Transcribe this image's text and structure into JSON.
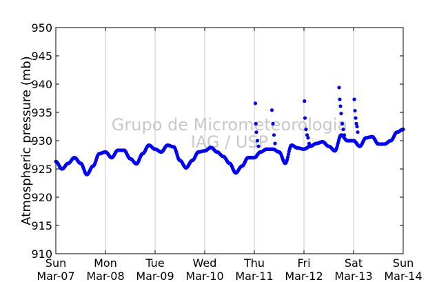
{
  "chart_data": {
    "type": "scatter",
    "title": "",
    "xlabel": "",
    "ylabel": "Atmospheric pressure (mb)",
    "ylim": [
      910,
      950
    ],
    "yticks": [
      910,
      915,
      920,
      925,
      930,
      935,
      940,
      945,
      950
    ],
    "xlim": [
      "2010-03-07",
      "2010-03-14"
    ],
    "xticks": [
      {
        "day": "Sun",
        "date": "Mar-07"
      },
      {
        "day": "Mon",
        "date": "Mar-08"
      },
      {
        "day": "Tue",
        "date": "Mar-09"
      },
      {
        "day": "Wed",
        "date": "Mar-10"
      },
      {
        "day": "Thu",
        "date": "Mar-11"
      },
      {
        "day": "Fri",
        "date": "Mar-12"
      },
      {
        "day": "Sat",
        "date": "Mar-13"
      },
      {
        "day": "Sun",
        "date": "Mar-14"
      }
    ],
    "grid": "vertical",
    "marker_color": "#0000ff",
    "watermark": [
      "Grupo de Micrometeorologia",
      "IAG / USP"
    ],
    "series": [
      {
        "x": [
          "2010-03-07 00:00",
          "2010-03-07 03:00",
          "2010-03-07 06:00",
          "2010-03-07 09:00",
          "2010-03-07 12:00",
          "2010-03-07 15:00",
          "2010-03-07 18:00",
          "2010-03-07 21:00",
          "2010-03-08 00:00",
          "2010-03-08 03:00",
          "2010-03-08 06:00",
          "2010-03-08 09:00",
          "2010-03-08 12:00",
          "2010-03-08 15:00",
          "2010-03-08 18:00",
          "2010-03-08 21:00",
          "2010-03-09 00:00",
          "2010-03-09 03:00",
          "2010-03-09 06:00",
          "2010-03-09 09:00",
          "2010-03-09 12:00",
          "2010-03-09 15:00",
          "2010-03-09 18:00",
          "2010-03-09 21:00",
          "2010-03-10 00:00",
          "2010-03-10 03:00",
          "2010-03-10 06:00",
          "2010-03-10 09:00",
          "2010-03-10 12:00",
          "2010-03-10 15:00",
          "2010-03-10 18:00",
          "2010-03-10 21:00",
          "2010-03-11 00:00",
          "2010-03-11 03:00",
          "2010-03-11 06:00",
          "2010-03-11 09:00",
          "2010-03-11 12:00",
          "2010-03-11 15:00",
          "2010-03-11 18:00",
          "2010-03-11 21:00",
          "2010-03-12 00:00",
          "2010-03-12 03:00",
          "2010-03-12 06:00",
          "2010-03-12 09:00",
          "2010-03-12 12:00",
          "2010-03-12 15:00",
          "2010-03-12 18:00",
          "2010-03-12 21:00",
          "2010-03-13 00:00",
          "2010-03-13 03:00",
          "2010-03-13 06:00",
          "2010-03-13 09:00",
          "2010-03-13 12:00",
          "2010-03-13 15:00",
          "2010-03-13 18:00",
          "2010-03-13 21:00",
          "2010-03-14 00:00"
        ],
        "y": [
          926.3,
          925.0,
          926.0,
          927.0,
          926.0,
          924.0,
          925.5,
          927.7,
          928.0,
          927.0,
          928.3,
          928.3,
          926.8,
          925.9,
          927.7,
          929.2,
          928.5,
          928.0,
          929.2,
          928.9,
          926.5,
          925.2,
          926.5,
          928.0,
          928.2,
          928.8,
          928.0,
          927.2,
          926.0,
          924.3,
          925.5,
          927.0,
          927.0,
          928.0,
          928.5,
          928.5,
          928.0,
          926.0,
          929.2,
          928.7,
          928.5,
          929.0,
          929.5,
          929.8,
          929.0,
          928.2,
          931.0,
          930.0,
          930.0,
          929.0,
          930.5,
          930.7,
          929.4,
          929.4,
          930.0,
          931.5,
          932.0
        ]
      },
      {
        "x": [
          "2010-03-11 00:30",
          "2010-03-11 00:45",
          "2010-03-11 01:00",
          "2010-03-11 01:30",
          "2010-03-11 02:00",
          "2010-03-11 08:30",
          "2010-03-11 09:00",
          "2010-03-11 09:30",
          "2010-03-11 10:00",
          "2010-03-12 00:15",
          "2010-03-12 00:30",
          "2010-03-12 01:00",
          "2010-03-12 01:30",
          "2010-03-12 02:00",
          "2010-03-12 02:30",
          "2010-03-12 17:00",
          "2010-03-12 17:20",
          "2010-03-12 17:40",
          "2010-03-12 18:00",
          "2010-03-12 18:30",
          "2010-03-12 19:00",
          "2010-03-12 19:30",
          "2010-03-13 00:20",
          "2010-03-13 00:40",
          "2010-03-13 01:00",
          "2010-03-13 01:20",
          "2010-03-13 01:40",
          "2010-03-13 02:00"
        ],
        "y": [
          936.6,
          933.0,
          931.5,
          930.0,
          929.0,
          935.4,
          933.0,
          931.0,
          929.5,
          937.0,
          934.0,
          932.0,
          931.0,
          930.5,
          929.5,
          939.4,
          937.3,
          936.1,
          934.8,
          933.0,
          932.0,
          931.0,
          937.3,
          935.3,
          934.0,
          933.0,
          932.5,
          931.5
        ]
      }
    ]
  }
}
